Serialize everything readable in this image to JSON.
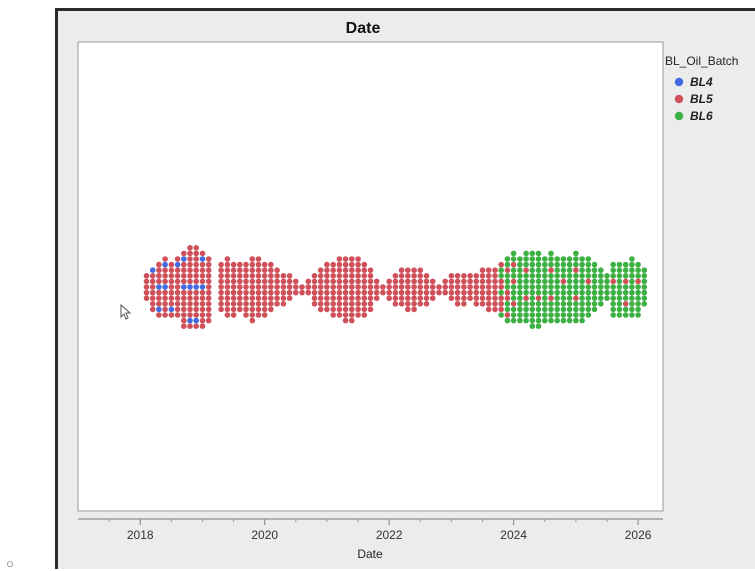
{
  "chart_data": {
    "type": "scatter",
    "title": "Date",
    "xlabel": "Date",
    "ylabel": "",
    "xlim": [
      2017.0,
      2026.4
    ],
    "x_ticks": [
      "2018",
      "2020",
      "2022",
      "2024",
      "2026"
    ],
    "x_tick_values": [
      2018,
      2020,
      2022,
      2024,
      2026
    ],
    "grid": false,
    "legend": {
      "title": "BL_Oil_Batch",
      "placement": "right",
      "entries": [
        {
          "name": "BL4",
          "color": "#4169e1"
        },
        {
          "name": "BL5",
          "color": "#d0505a"
        },
        {
          "name": "BL6",
          "color": "#3cb043"
        }
      ]
    },
    "series": [
      {
        "name": "BL4",
        "color": "#4169e1",
        "points_per_column": [
          [
            2018.2,
            1
          ],
          [
            2018.3,
            2
          ],
          [
            2018.4,
            2
          ],
          [
            2018.5,
            1
          ],
          [
            2018.6,
            1
          ],
          [
            2018.7,
            2
          ],
          [
            2018.8,
            2
          ],
          [
            2018.9,
            2
          ],
          [
            2019.0,
            2
          ]
        ]
      },
      {
        "name": "BL5",
        "color": "#d0505a",
        "points_per_column": [
          [
            2018.1,
            5
          ],
          [
            2018.2,
            7
          ],
          [
            2018.3,
            8
          ],
          [
            2018.4,
            9
          ],
          [
            2018.5,
            9
          ],
          [
            2018.6,
            10
          ],
          [
            2018.7,
            12
          ],
          [
            2018.8,
            13
          ],
          [
            2018.9,
            13
          ],
          [
            2019.0,
            12
          ],
          [
            2019.1,
            12
          ],
          [
            2019.3,
            9
          ],
          [
            2019.4,
            11
          ],
          [
            2019.5,
            10
          ],
          [
            2019.6,
            9
          ],
          [
            2019.7,
            10
          ],
          [
            2019.8,
            12
          ],
          [
            2019.9,
            11
          ],
          [
            2020.0,
            10
          ],
          [
            2020.1,
            9
          ],
          [
            2020.2,
            7
          ],
          [
            2020.3,
            6
          ],
          [
            2020.4,
            5
          ],
          [
            2020.5,
            3
          ],
          [
            2020.6,
            2
          ],
          [
            2020.7,
            3
          ],
          [
            2020.8,
            6
          ],
          [
            2020.9,
            8
          ],
          [
            2021.0,
            9
          ],
          [
            2021.1,
            10
          ],
          [
            2021.2,
            11
          ],
          [
            2021.3,
            12
          ],
          [
            2021.4,
            12
          ],
          [
            2021.5,
            11
          ],
          [
            2021.6,
            10
          ],
          [
            2021.7,
            8
          ],
          [
            2021.8,
            4
          ],
          [
            2021.9,
            2
          ],
          [
            2022.0,
            4
          ],
          [
            2022.1,
            6
          ],
          [
            2022.2,
            7
          ],
          [
            2022.3,
            8
          ],
          [
            2022.4,
            8
          ],
          [
            2022.5,
            7
          ],
          [
            2022.6,
            6
          ],
          [
            2022.7,
            4
          ],
          [
            2022.8,
            2
          ],
          [
            2022.9,
            3
          ],
          [
            2023.0,
            5
          ],
          [
            2023.1,
            6
          ],
          [
            2023.2,
            6
          ],
          [
            2023.3,
            5
          ],
          [
            2023.4,
            6
          ],
          [
            2023.5,
            7
          ],
          [
            2023.6,
            8
          ],
          [
            2023.7,
            8
          ],
          [
            2023.8,
            6
          ],
          [
            2023.9,
            4
          ],
          [
            2024.0,
            3
          ],
          [
            2024.2,
            2
          ],
          [
            2024.4,
            1
          ],
          [
            2024.6,
            2
          ],
          [
            2024.8,
            1
          ],
          [
            2025.0,
            2
          ],
          [
            2025.2,
            1
          ],
          [
            2025.6,
            1
          ],
          [
            2025.8,
            2
          ],
          [
            2026.0,
            1
          ]
        ]
      },
      {
        "name": "BL6",
        "color": "#3cb043",
        "points_per_column": [
          [
            2023.8,
            4
          ],
          [
            2023.9,
            8
          ],
          [
            2024.0,
            10
          ],
          [
            2024.1,
            12
          ],
          [
            2024.2,
            11
          ],
          [
            2024.3,
            14
          ],
          [
            2024.4,
            13
          ],
          [
            2024.5,
            12
          ],
          [
            2024.6,
            11
          ],
          [
            2024.7,
            12
          ],
          [
            2024.8,
            11
          ],
          [
            2024.9,
            12
          ],
          [
            2025.0,
            11
          ],
          [
            2025.1,
            12
          ],
          [
            2025.2,
            10
          ],
          [
            2025.3,
            9
          ],
          [
            2025.4,
            7
          ],
          [
            2025.5,
            5
          ],
          [
            2025.6,
            9
          ],
          [
            2025.7,
            10
          ],
          [
            2025.8,
            8
          ],
          [
            2025.9,
            11
          ],
          [
            2026.0,
            9
          ],
          [
            2026.1,
            7
          ]
        ]
      }
    ]
  }
}
